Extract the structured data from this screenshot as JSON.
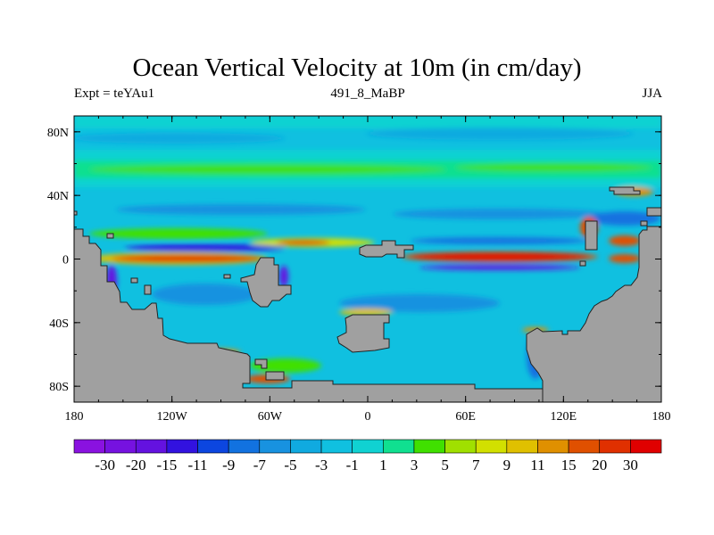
{
  "chart_data": {
    "type": "heatmap",
    "title": "Ocean Vertical Velocity at 10m (in cm/day)",
    "subtitle_left": "Expt = teYAu1",
    "subtitle_center": "491_8_MaBP",
    "subtitle_right": "JJA",
    "x_range": [
      -180,
      180
    ],
    "y_range": [
      -90,
      90
    ],
    "x_ticks": [
      {
        "value": -180,
        "label": "180"
      },
      {
        "value": -120,
        "label": "120W"
      },
      {
        "value": -60,
        "label": "60W"
      },
      {
        "value": 0,
        "label": "0"
      },
      {
        "value": 60,
        "label": "60E"
      },
      {
        "value": 120,
        "label": "120E"
      },
      {
        "value": 180,
        "label": "180"
      }
    ],
    "y_ticks": [
      {
        "value": 80,
        "label": "80N"
      },
      {
        "value": 40,
        "label": "40N"
      },
      {
        "value": 0,
        "label": "0"
      },
      {
        "value": -40,
        "label": "40S"
      },
      {
        "value": -80,
        "label": "80S"
      }
    ],
    "colorbar": {
      "levels": [
        "-30",
        "-20",
        "-15",
        "-11",
        "-9",
        "-7",
        "-5",
        "-3",
        "-1",
        "1",
        "3",
        "5",
        "7",
        "9",
        "11",
        "15",
        "20",
        "30"
      ],
      "colors": [
        "#8a12e0",
        "#7612e0",
        "#6412e0",
        "#3212e0",
        "#0c46e0",
        "#1272e0",
        "#1892e0",
        "#10aae0",
        "#10c0e0",
        "#10d2d2",
        "#10e090",
        "#40e000",
        "#a0e000",
        "#d2e000",
        "#e0c000",
        "#e09000",
        "#e05000",
        "#e03000",
        "#e00000"
      ],
      "placement": "bottom"
    },
    "land_color": "#a0a0a0"
  }
}
